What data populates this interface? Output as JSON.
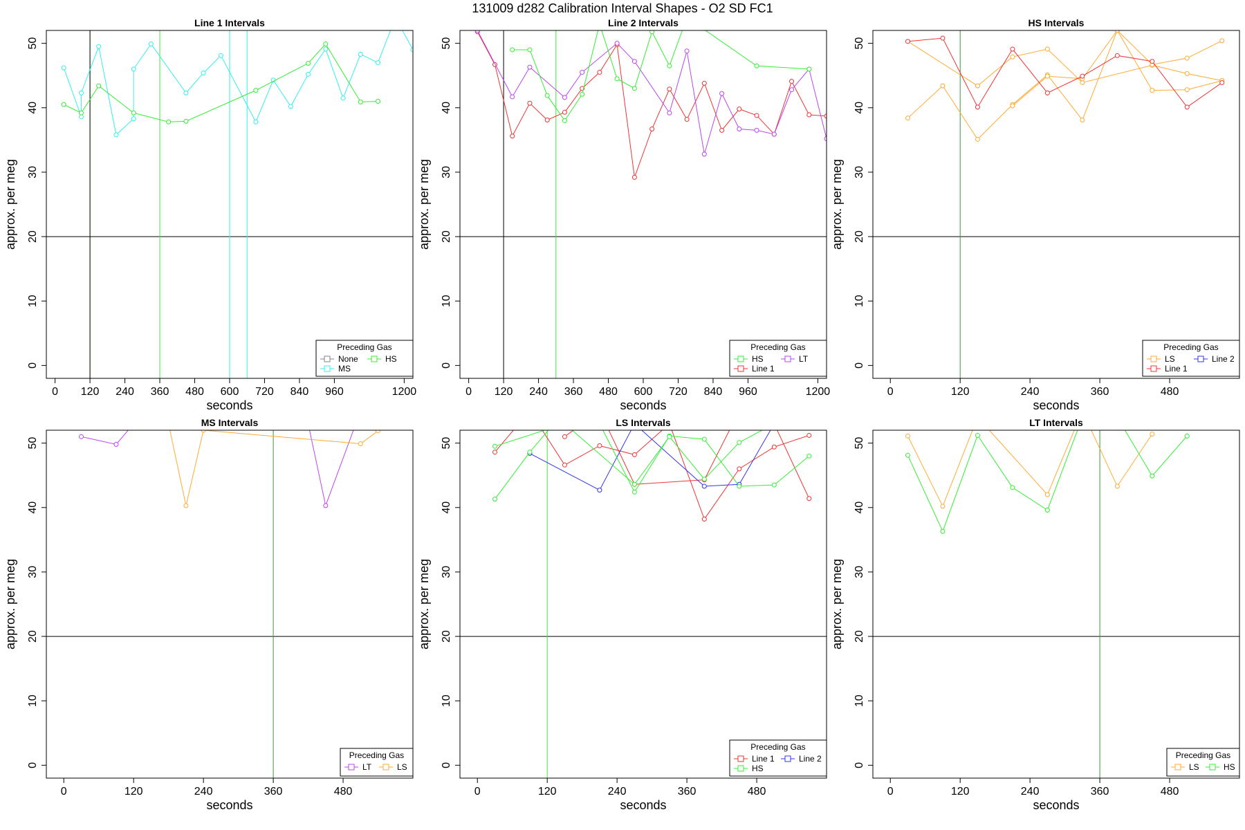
{
  "title": "131009   d282   Calibration Interval Shapes - O2 SD FC1",
  "colors": {
    "None": "#808080",
    "HS": "#33ee33",
    "MS": "#33eeee",
    "Line 1": "#ee3333",
    "Line 2": "#3333ee",
    "LT": "#bb44ee",
    "LS": "#ffaa33",
    "ref": "#000000",
    "vline": "#339933"
  },
  "chart_data": [
    {
      "type": "line",
      "title": "Line 1 Intervals",
      "xlabel": "seconds",
      "ylabel": "approx. per meg",
      "xlim": [
        -30,
        1230
      ],
      "ylim": [
        -2,
        52
      ],
      "xticks": [
        0,
        120,
        240,
        360,
        480,
        600,
        720,
        840,
        960,
        1200
      ],
      "yticks": [
        0,
        10,
        20,
        30,
        40,
        50
      ],
      "hline": 20,
      "vlines": [
        {
          "x": 120,
          "color": "HS"
        },
        {
          "x": 120,
          "color": "ref"
        },
        {
          "x": 360,
          "color": "HS"
        },
        {
          "x": 600,
          "color": "MS"
        },
        {
          "x": 660,
          "color": "MS"
        }
      ],
      "legend": {
        "title": "Preceding Gas",
        "position": "bottom-right",
        "entries": [
          "None",
          "HS",
          "MS"
        ]
      },
      "series": [
        {
          "name": "MS",
          "x": [
            30,
            90,
            90,
            150,
            210,
            270,
            270,
            330,
            450,
            510,
            570,
            690,
            750,
            810,
            870,
            930,
            990,
            1050,
            1110,
            1170,
            1230
          ],
          "y": [
            46.2,
            38.6,
            42.3,
            49.5,
            35.8,
            38.3,
            46.0,
            49.9,
            42.3,
            45.4,
            48.1,
            37.8,
            44.3,
            40.2,
            45.2,
            49.1,
            41.5,
            48.3,
            47.0,
            54,
            49
          ]
        },
        {
          "name": "HS",
          "x": [
            30,
            90,
            150,
            270,
            390,
            450,
            690,
            870,
            930,
            1050,
            1110
          ],
          "y": [
            40.5,
            39.2,
            43.4,
            39.2,
            37.8,
            37.9,
            42.7,
            46.9,
            49.9,
            40.9,
            41.0
          ]
        }
      ]
    },
    {
      "type": "line",
      "title": "Line 2 Intervals",
      "xlabel": "seconds",
      "ylabel": "approx. per meg",
      "xlim": [
        -30,
        1230
      ],
      "ylim": [
        -2,
        52
      ],
      "xticks": [
        0,
        120,
        240,
        360,
        480,
        600,
        720,
        840,
        960,
        1200
      ],
      "yticks": [
        0,
        10,
        20,
        30,
        40,
        50
      ],
      "hline": 20,
      "vlines": [
        {
          "x": 120,
          "color": "ref"
        },
        {
          "x": 300,
          "color": "HS"
        }
      ],
      "legend": {
        "title": "Preceding Gas",
        "position": "bottom-right",
        "entries": [
          "HS",
          "LT",
          "Line 1"
        ]
      },
      "series": [
        {
          "name": "Line 1",
          "x": [
            30,
            90,
            150,
            210,
            270,
            330,
            390,
            450,
            510,
            570,
            630,
            690,
            750,
            810,
            870,
            930,
            990,
            1050,
            1110,
            1170,
            1230
          ],
          "y": [
            51.8,
            46.7,
            35.6,
            40.7,
            38.1,
            39.3,
            43.0,
            45.5,
            49.8,
            29.2,
            36.7,
            42.9,
            38.2,
            43.8,
            36.5,
            39.8,
            38.8,
            35.9,
            44.1,
            38.9,
            38.7
          ]
        },
        {
          "name": "LT",
          "x": [
            30,
            150,
            210,
            330,
            390,
            510,
            570,
            690,
            750,
            810,
            870,
            930,
            990,
            1050,
            1110,
            1170,
            1230
          ],
          "y": [
            52,
            41.7,
            46.3,
            41.6,
            45.5,
            50.0,
            47.2,
            39.2,
            48.8,
            32.8,
            42.2,
            36.7,
            36.5,
            35.9,
            42.8,
            46.0,
            35.2
          ]
        },
        {
          "name": "HS",
          "x": [
            150,
            210,
            270,
            330,
            390,
            450,
            510,
            570,
            630,
            690,
            750,
            990,
            1170
          ],
          "y": [
            49,
            49.0,
            41.9,
            38.0,
            42.1,
            53,
            44.5,
            43.0,
            51.8,
            46.5,
            54,
            46.5,
            46.0
          ]
        }
      ]
    },
    {
      "type": "line",
      "title": "HS Intervals",
      "xlabel": "seconds",
      "ylabel": "approx. per meg",
      "xlim": [
        -30,
        600
      ],
      "ylim": [
        -2,
        52
      ],
      "xticks": [
        0,
        120,
        240,
        360,
        480
      ],
      "yticks": [
        0,
        10,
        20,
        30,
        40,
        50
      ],
      "hline": 20,
      "vlines": [
        {
          "x": 120,
          "color": "vline"
        }
      ],
      "legend": {
        "title": "Preceding Gas",
        "position": "bottom-right",
        "entries": [
          "LS",
          "Line 2",
          "Line 1"
        ]
      },
      "series": [
        {
          "name": "LS",
          "x": [
            30,
            90,
            150,
            210,
            270,
            330,
            390,
            450,
            510,
            570
          ],
          "y": [
            38.4,
            43.4,
            35.1,
            40.5,
            45.1,
            38.1,
            52,
            42.7,
            42.8,
            44.2
          ]
        },
        {
          "name": "LS",
          "x": [
            30,
            150,
            210,
            270,
            330,
            450,
            510,
            570
          ],
          "y": [
            50.3,
            43.4,
            47.9,
            49.1,
            43.9,
            46.6,
            45.3,
            44.2
          ]
        },
        {
          "name": "LS",
          "x": [
            210,
            270,
            330,
            390,
            450,
            510,
            570
          ],
          "y": [
            40.3,
            44.9,
            44.5,
            52,
            46.7,
            47.7,
            50.4
          ]
        },
        {
          "name": "Line 1",
          "x": [
            30,
            90,
            150,
            210,
            270,
            330,
            390,
            450,
            510,
            570
          ],
          "y": [
            50.3,
            50.8,
            40.1,
            49.1,
            42.3,
            44.9,
            48.1,
            47.2,
            40.1,
            43.9
          ]
        }
      ]
    },
    {
      "type": "line",
      "title": "MS Intervals",
      "xlabel": "seconds",
      "ylabel": "approx. per meg",
      "xlim": [
        -30,
        600
      ],
      "ylim": [
        -2,
        52
      ],
      "xticks": [
        0,
        120,
        240,
        360,
        480
      ],
      "yticks": [
        0,
        10,
        20,
        30,
        40,
        50
      ],
      "hline": 20,
      "vlines": [
        {
          "x": 360,
          "color": "vline"
        }
      ],
      "legend": {
        "title": "Preceding Gas",
        "position": "bottom-right",
        "entries": [
          "LT",
          "LS"
        ]
      },
      "series": [
        {
          "name": "LT",
          "x": [
            30,
            90,
            120,
            420,
            450,
            510
          ],
          "y": [
            51.0,
            49.8,
            53,
            53,
            40.3,
            55
          ]
        },
        {
          "name": "LS",
          "x": [
            180,
            210,
            240,
            510,
            540
          ],
          "y": [
            53,
            40.3,
            52,
            49.9,
            51.9
          ]
        }
      ]
    },
    {
      "type": "line",
      "title": "LS Intervals",
      "xlabel": "seconds",
      "ylabel": "approx. per meg",
      "xlim": [
        -30,
        600
      ],
      "ylim": [
        -2,
        52
      ],
      "xticks": [
        0,
        120,
        240,
        360,
        480
      ],
      "yticks": [
        0,
        10,
        20,
        30,
        40,
        50
      ],
      "hline": 20,
      "vlines": [
        {
          "x": 120,
          "color": "HS"
        }
      ],
      "legend": {
        "title": "Preceding Gas",
        "position": "bottom-right",
        "entries": [
          "Line 1",
          "Line 2",
          "HS"
        ]
      },
      "series": [
        {
          "name": "Line 1",
          "x": [
            30,
            90,
            150,
            210,
            270,
            330,
            390,
            450,
            510,
            570
          ],
          "y": [
            48.6,
            55,
            46.6,
            49.6,
            48.2,
            53,
            38.2,
            46.0,
            49.4,
            51.2
          ]
        },
        {
          "name": "Line 1",
          "x": [
            150,
            210,
            270,
            390,
            450,
            510,
            570
          ],
          "y": [
            51.0,
            55,
            43.6,
            44.3,
            55,
            53,
            41.4
          ]
        },
        {
          "name": "Line 2",
          "x": [
            90,
            210,
            270,
            390,
            450,
            510
          ],
          "y": [
            48.4,
            42.7,
            53,
            43.3,
            43.6,
            53
          ]
        },
        {
          "name": "HS",
          "x": [
            30,
            90,
            150,
            210,
            270,
            330,
            390,
            450,
            510,
            570
          ],
          "y": [
            41.3,
            48.6,
            55,
            53,
            42.4,
            51.1,
            50.6,
            43.3,
            43.5,
            48.0
          ]
        },
        {
          "name": "HS",
          "x": [
            30,
            150,
            270,
            330,
            390,
            450,
            510
          ],
          "y": [
            49.5,
            53,
            43.6,
            51,
            44.4,
            50.1,
            53
          ]
        }
      ]
    },
    {
      "type": "line",
      "title": "LT Intervals",
      "xlabel": "seconds",
      "ylabel": "approx. per meg",
      "xlim": [
        -30,
        600
      ],
      "ylim": [
        -2,
        52
      ],
      "xticks": [
        0,
        120,
        240,
        360,
        480
      ],
      "yticks": [
        0,
        10,
        20,
        30,
        40,
        50
      ],
      "hline": 20,
      "vlines": [
        {
          "x": 360,
          "color": "vline"
        }
      ],
      "legend": {
        "title": "Preceding Gas",
        "position": "bottom-right",
        "entries": [
          "LS",
          "HS"
        ]
      },
      "series": [
        {
          "name": "LS",
          "x": [
            30,
            90,
            150,
            270,
            330,
            390,
            450
          ],
          "y": [
            51.1,
            40.2,
            54,
            42.0,
            55,
            43.3,
            51.4
          ]
        },
        {
          "name": "HS",
          "x": [
            30,
            90,
            150,
            210,
            270,
            330,
            390,
            450,
            510
          ],
          "y": [
            48.1,
            36.3,
            51.2,
            43.1,
            39.6,
            54,
            54,
            44.9,
            51.1
          ]
        }
      ]
    }
  ]
}
